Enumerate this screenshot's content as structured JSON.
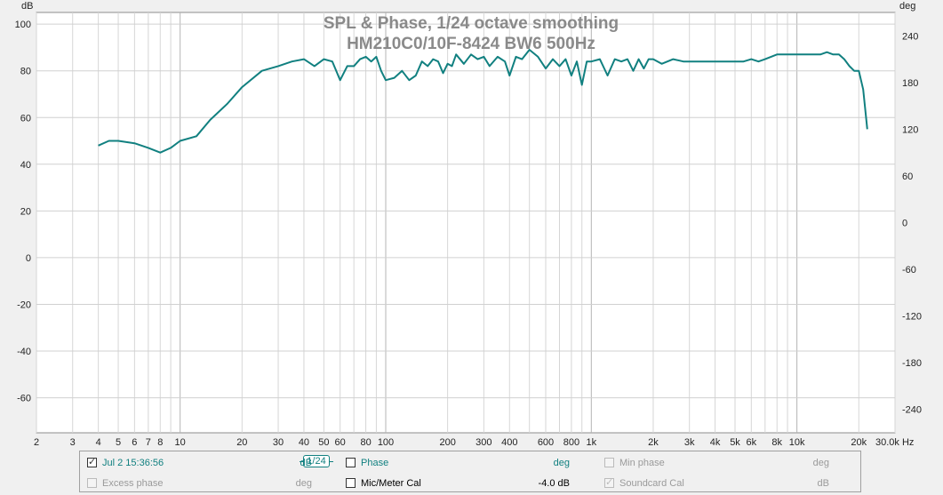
{
  "chart_data": {
    "type": "line",
    "title": "SPL & Phase, 1/24 octave smoothing",
    "subtitle": "HM210C0/10F-8424 BW6 500Hz",
    "left_unit": "dB",
    "right_unit": "deg",
    "x_scale": "log",
    "xlim": [
      2,
      30000
    ],
    "ylim": [
      -75,
      105
    ],
    "y2lim": [
      -270,
      270
    ],
    "grid": true,
    "x_ticks": [
      {
        "v": 2,
        "label": "2"
      },
      {
        "v": 3,
        "label": "3"
      },
      {
        "v": 4,
        "label": "4"
      },
      {
        "v": 5,
        "label": "5"
      },
      {
        "v": 6,
        "label": "6"
      },
      {
        "v": 7,
        "label": "7"
      },
      {
        "v": 8,
        "label": "8"
      },
      {
        "v": 10,
        "label": "10"
      },
      {
        "v": 20,
        "label": "20"
      },
      {
        "v": 30,
        "label": "30"
      },
      {
        "v": 40,
        "label": "40"
      },
      {
        "v": 50,
        "label": "50"
      },
      {
        "v": 60,
        "label": "60"
      },
      {
        "v": 80,
        "label": "80"
      },
      {
        "v": 100,
        "label": "100"
      },
      {
        "v": 200,
        "label": "200"
      },
      {
        "v": 300,
        "label": "300"
      },
      {
        "v": 400,
        "label": "400"
      },
      {
        "v": 600,
        "label": "600"
      },
      {
        "v": 800,
        "label": "800"
      },
      {
        "v": 1000,
        "label": "1k"
      },
      {
        "v": 2000,
        "label": "2k"
      },
      {
        "v": 3000,
        "label": "3k"
      },
      {
        "v": 4000,
        "label": "4k"
      },
      {
        "v": 5000,
        "label": "5k"
      },
      {
        "v": 6000,
        "label": "6k"
      },
      {
        "v": 8000,
        "label": "8k"
      },
      {
        "v": 10000,
        "label": "10k"
      },
      {
        "v": 20000,
        "label": "20k"
      },
      {
        "v": 30000,
        "label": "30.0k Hz"
      }
    ],
    "y_ticks": [
      100,
      80,
      60,
      40,
      20,
      0,
      -20,
      -40,
      -60
    ],
    "y2_ticks": [
      240,
      180,
      120,
      60,
      0,
      -60,
      -120,
      -180,
      -240
    ],
    "series": [
      {
        "name": "Jul 2 15:36:56",
        "color": "#118080",
        "x": [
          4,
          4.5,
          5,
          6,
          7,
          8,
          9,
          10,
          12,
          14,
          17,
          20,
          25,
          30,
          35,
          40,
          45,
          50,
          55,
          60,
          65,
          70,
          75,
          80,
          85,
          90,
          95,
          100,
          110,
          120,
          130,
          140,
          150,
          160,
          170,
          180,
          190,
          200,
          210,
          220,
          240,
          260,
          280,
          300,
          320,
          350,
          380,
          400,
          430,
          460,
          500,
          550,
          600,
          650,
          700,
          750,
          800,
          850,
          900,
          950,
          1000,
          1100,
          1200,
          1300,
          1400,
          1500,
          1600,
          1700,
          1800,
          1900,
          2000,
          2200,
          2500,
          2800,
          3000,
          3500,
          4000,
          4500,
          5000,
          5500,
          6000,
          6500,
          7000,
          8000,
          9000,
          10000,
          11000,
          12000,
          13000,
          14000,
          15000,
          16000,
          17000,
          18000,
          19000,
          20000,
          21000,
          22000
        ],
        "y": [
          48,
          50,
          50,
          49,
          47,
          45,
          47,
          50,
          52,
          59,
          66,
          73,
          80,
          82,
          84,
          85,
          82,
          85,
          84,
          76,
          82,
          82,
          85,
          86,
          84,
          86,
          80,
          76,
          77,
          80,
          76,
          78,
          84,
          82,
          85,
          84,
          79,
          83,
          82,
          87,
          83,
          87,
          85,
          86,
          82,
          86,
          84,
          78,
          86,
          85,
          89,
          86,
          81,
          85,
          82,
          85,
          78,
          84,
          74,
          84,
          84,
          85,
          78,
          85,
          84,
          85,
          80,
          85,
          81,
          85,
          85,
          83,
          85,
          84,
          84,
          84,
          84,
          84,
          84,
          84,
          85,
          84,
          85,
          87,
          87,
          87,
          87,
          87,
          87,
          88,
          87,
          87,
          85,
          82,
          80,
          80,
          72,
          55
        ]
      }
    ]
  },
  "legend": {
    "items": [
      {
        "label": "Jul 2 15:36:56",
        "unit": "dB",
        "checked": true,
        "enabled": true
      },
      {
        "label": "Phase",
        "unit": "deg",
        "checked": false,
        "enabled": true
      },
      {
        "label": "Min phase",
        "unit": "deg",
        "checked": false,
        "enabled": false
      },
      {
        "label": "Excess phase",
        "unit": "deg",
        "checked": false,
        "enabled": false
      },
      {
        "label": "Mic/Meter Cal",
        "unit": "-4.0 dB",
        "checked": false,
        "enabled": true
      },
      {
        "label": "Soundcard Cal",
        "unit": "dB",
        "checked": true,
        "enabled": false
      }
    ],
    "smoothing_label": "1/24"
  }
}
